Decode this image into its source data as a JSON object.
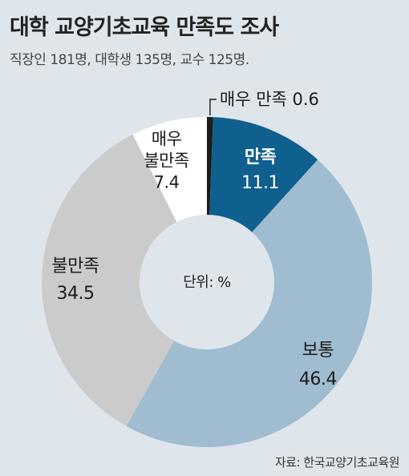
{
  "title": "대학 교양기초교육 만족도 조사",
  "subtitle": "직장인 181명, 대학생 135명, 교수 125명.",
  "source": "자료: 한국교양기초교육원",
  "chart_data": {
    "type": "pie",
    "donut": true,
    "center_label": "단위: %",
    "categories": [
      "매우 만족",
      "만족",
      "보통",
      "불만족",
      "매우 불만족"
    ],
    "values": [
      0.6,
      11.1,
      46.4,
      34.5,
      7.4
    ],
    "colors": [
      "#1c1c1c",
      "#0f5f8f",
      "#9fbcd0",
      "#cbcbcb",
      "#ffffff"
    ],
    "label_colors": [
      "#1c1c1c",
      "#ffffff",
      "#1c1c1c",
      "#1c1c1c",
      "#1c1c1c"
    ],
    "label_lines": [
      [
        "매우 만족 0.6"
      ],
      [
        "만족",
        "11.1"
      ],
      [
        "보통",
        "46.4"
      ],
      [
        "불만족",
        "34.5"
      ],
      [
        "매우",
        "불만족",
        "7.4"
      ]
    ]
  }
}
